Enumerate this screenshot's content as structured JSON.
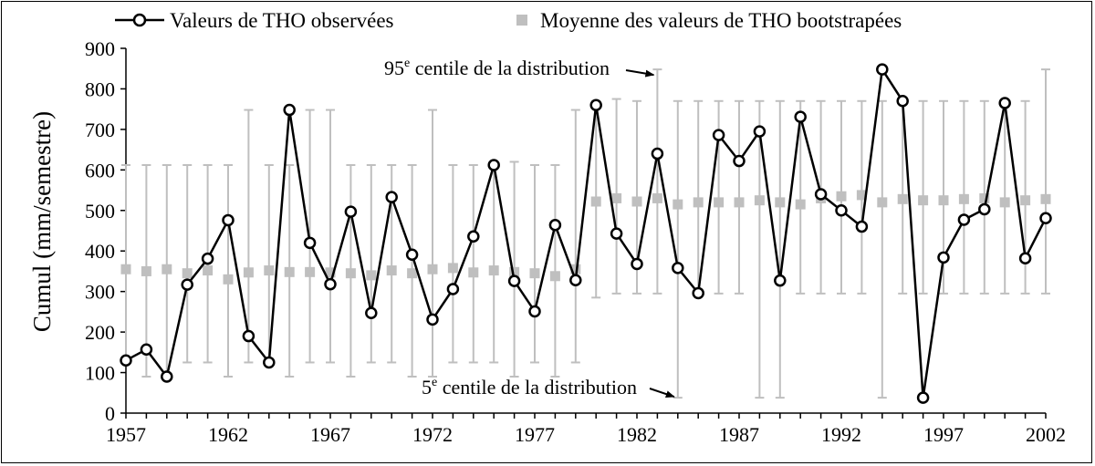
{
  "chart_data": {
    "type": "line",
    "title": "",
    "xlabel": "",
    "ylabel": "Cumul (mm/semestre)",
    "xlim": [
      1957,
      2002
    ],
    "ylim": [
      0,
      900
    ],
    "xticks": [
      1957,
      1962,
      1967,
      1972,
      1977,
      1982,
      1987,
      1992,
      1997,
      2002
    ],
    "yticks": [
      0,
      100,
      200,
      300,
      400,
      500,
      600,
      700,
      800,
      900
    ],
    "grid": false,
    "legend_position": "top",
    "colors": {
      "observed": "#000000",
      "mean": "#bfbfbf",
      "errorbar": "#bfbfbf"
    },
    "x": [
      1957,
      1958,
      1959,
      1960,
      1961,
      1962,
      1963,
      1964,
      1965,
      1966,
      1967,
      1968,
      1969,
      1970,
      1971,
      1972,
      1973,
      1974,
      1975,
      1976,
      1977,
      1978,
      1979,
      1980,
      1981,
      1982,
      1983,
      1984,
      1985,
      1986,
      1987,
      1988,
      1989,
      1990,
      1991,
      1992,
      1993,
      1994,
      1995,
      1996,
      1997,
      1998,
      1999,
      2000,
      2001,
      2002
    ],
    "series": [
      {
        "name": "Valeurs de THO observées",
        "marker": "circle-line",
        "values": [
          130,
          157,
          90,
          317,
          381,
          476,
          190,
          125,
          748,
          420,
          318,
          497,
          247,
          533,
          391,
          231,
          306,
          436,
          612,
          326,
          251,
          464,
          328,
          760,
          443,
          368,
          640,
          358,
          296,
          686,
          622,
          695,
          327,
          731,
          540,
          500,
          460,
          848,
          770,
          38,
          384,
          477,
          503,
          765,
          382,
          481
        ]
      },
      {
        "name": "Moyenne des valeurs de THO bootstrapées",
        "marker": "square",
        "values": [
          355,
          350,
          355,
          345,
          352,
          330,
          347,
          352,
          348,
          348,
          347,
          345,
          340,
          352,
          345,
          355,
          358,
          347,
          352,
          348,
          345,
          338,
          355,
          522,
          530,
          522,
          530,
          515,
          520,
          520,
          520,
          525,
          520,
          515,
          530,
          535,
          538,
          520,
          528,
          525,
          525,
          528,
          530,
          520,
          525,
          528
        ],
        "ci_low": [
          125,
          90,
          90,
          125,
          125,
          90,
          125,
          125,
          90,
          125,
          125,
          90,
          125,
          125,
          90,
          90,
          125,
          125,
          125,
          90,
          125,
          90,
          125,
          285,
          295,
          295,
          295,
          38,
          295,
          295,
          295,
          38,
          38,
          295,
          295,
          295,
          295,
          38,
          295,
          295,
          295,
          295,
          295,
          295,
          295,
          295
        ],
        "ci_high": [
          612,
          612,
          612,
          612,
          612,
          612,
          748,
          612,
          612,
          748,
          748,
          612,
          612,
          612,
          612,
          748,
          612,
          612,
          612,
          620,
          612,
          612,
          748,
          770,
          775,
          770,
          848,
          770,
          770,
          770,
          770,
          770,
          770,
          770,
          770,
          770,
          770,
          770,
          770,
          770,
          770,
          770,
          770,
          770,
          770,
          848
        ]
      }
    ],
    "annotations": [
      {
        "text_main": "95",
        "text_sup": "e",
        "text_rest": " centile de la distribution",
        "x": 1983,
        "y": 848
      },
      {
        "text_main": "5",
        "text_sup": "e",
        "text_rest": " centile de la distribution",
        "x": 1984,
        "y": 38
      }
    ]
  }
}
